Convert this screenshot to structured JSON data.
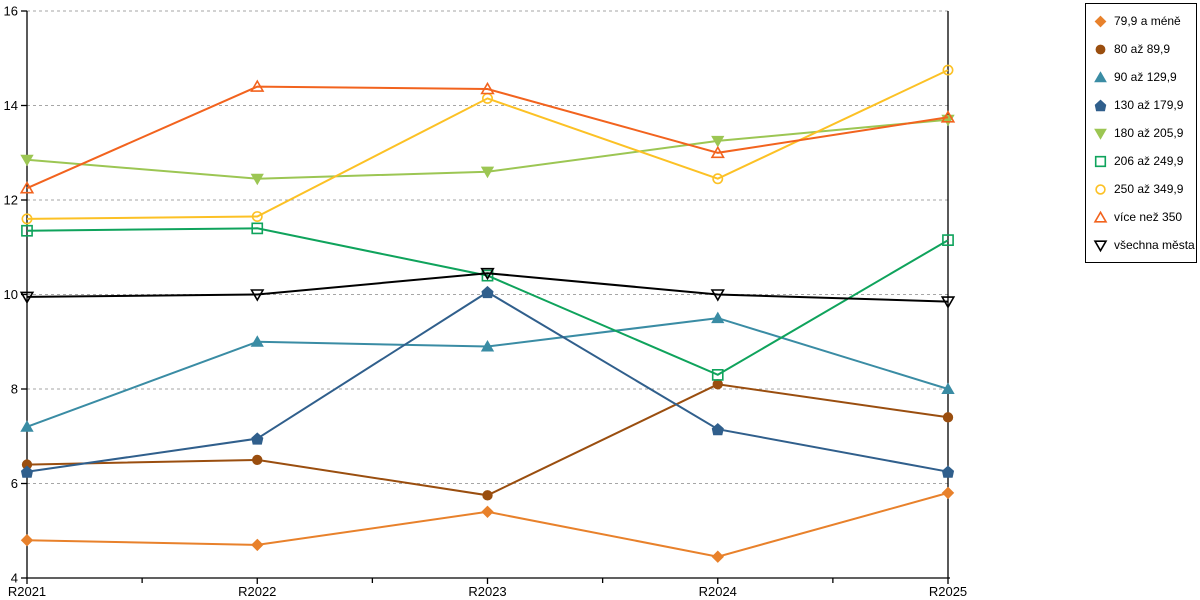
{
  "chart_data": {
    "type": "line",
    "title": "",
    "xlabel": "",
    "ylabel": "",
    "x": [
      "R2021",
      "R2022",
      "R2023",
      "R2024",
      "R2025"
    ],
    "ylim": [
      4,
      16
    ],
    "yticks": [
      4,
      6,
      8,
      10,
      12,
      14,
      16
    ],
    "grid": "horizontal dotted gridlines at 6,8,10,12,14,16",
    "legend_position": "right",
    "axis_color": "#000000",
    "gridline_color": "#A6A6A6",
    "series": [
      {
        "name": "79,9 a méně",
        "marker": "diamond",
        "fill": "filled",
        "color": "#E8812B",
        "values": [
          4.8,
          4.7,
          5.4,
          4.45,
          5.8
        ]
      },
      {
        "name": "80 až 89,9",
        "marker": "circle",
        "fill": "filled",
        "color": "#9A4E0F",
        "values": [
          6.4,
          6.5,
          5.75,
          8.1,
          7.4
        ]
      },
      {
        "name": "90 až 129,9",
        "marker": "triangle-up",
        "fill": "filled",
        "color": "#3A8CA4",
        "values": [
          7.2,
          9.0,
          8.9,
          9.5,
          8.0
        ]
      },
      {
        "name": "130 až 179,9",
        "marker": "pentagon",
        "fill": "filled",
        "color": "#305F8C",
        "values": [
          6.25,
          6.95,
          10.05,
          7.15,
          6.25
        ]
      },
      {
        "name": "180 až 205,9",
        "marker": "triangle-down",
        "fill": "filled",
        "color": "#9CC653",
        "values": [
          12.85,
          12.45,
          12.6,
          13.25,
          13.7
        ]
      },
      {
        "name": "206 až 249,9",
        "marker": "square",
        "fill": "open",
        "color": "#0FA35C",
        "values": [
          11.35,
          11.4,
          10.4,
          8.3,
          11.15
        ]
      },
      {
        "name": "250 až 349,9",
        "marker": "circle",
        "fill": "open",
        "color": "#FCC125",
        "values": [
          11.6,
          11.65,
          14.15,
          12.45,
          14.75
        ]
      },
      {
        "name": "více než 350",
        "marker": "triangle-up",
        "fill": "open",
        "color": "#F2631E",
        "values": [
          12.25,
          14.4,
          14.35,
          13.0,
          13.75
        ]
      },
      {
        "name": "všechna města",
        "marker": "triangle-down",
        "fill": "open",
        "color": "#000000",
        "values": [
          9.95,
          10.0,
          10.45,
          10.0,
          9.85
        ]
      }
    ]
  }
}
